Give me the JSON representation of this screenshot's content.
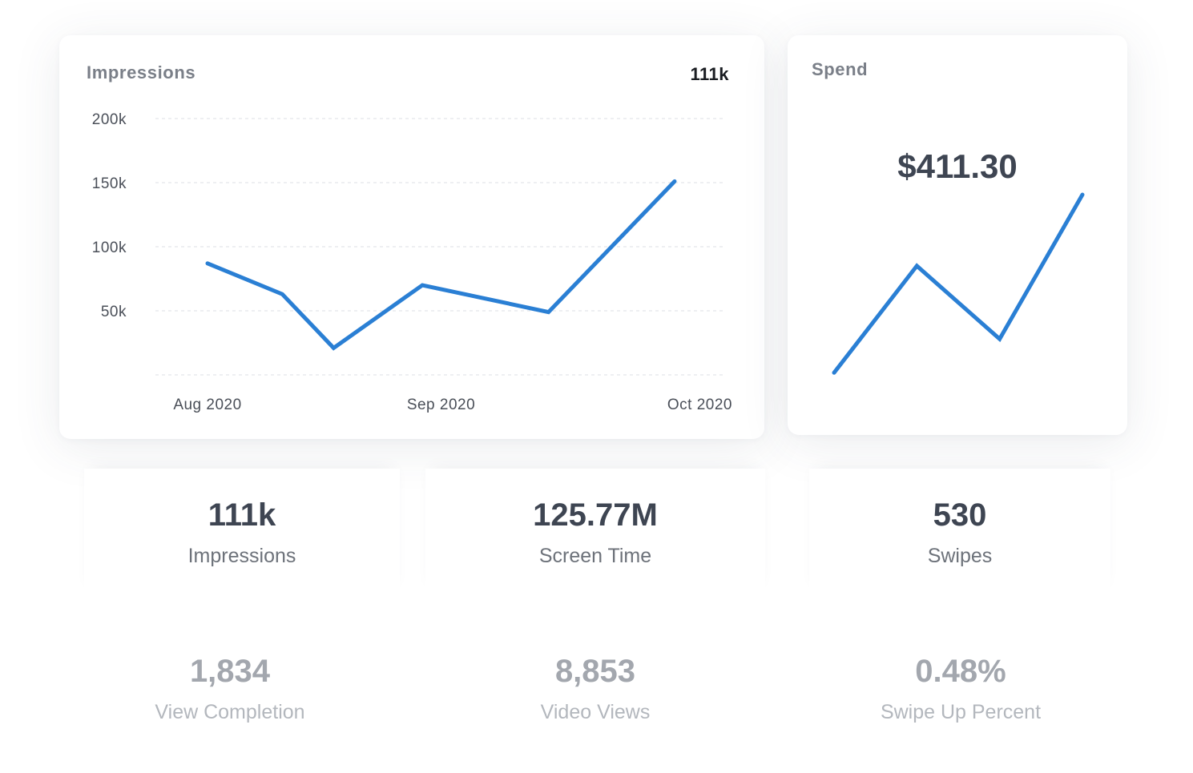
{
  "impressions_card": {
    "title": "Impressions",
    "total": "111k"
  },
  "spend_card": {
    "title": "Spend",
    "amount": "$411.30"
  },
  "chart_data": [
    {
      "type": "line",
      "title": "Impressions",
      "x": [
        0,
        0.16,
        0.27,
        0.46,
        0.73,
        1.0
      ],
      "x_tick_values": [
        0,
        0.5,
        1.0
      ],
      "x_tick_labels": [
        "Aug 2020",
        "Sep 2020",
        "Oct 2020"
      ],
      "y_tick_values": [
        50000,
        100000,
        150000,
        200000
      ],
      "y_tick_labels": [
        "50k",
        "100k",
        "150k",
        "200k"
      ],
      "ylim": [
        0,
        200000
      ],
      "grid": true,
      "series": [
        {
          "name": "Impressions",
          "values": [
            87000,
            63000,
            21000,
            70000,
            49000,
            151000
          ]
        }
      ],
      "color": "#2a7fd4"
    },
    {
      "type": "line",
      "title": "Spend",
      "x": [
        0,
        1,
        2,
        3
      ],
      "ylim": [
        0,
        100
      ],
      "grid": false,
      "series": [
        {
          "name": "Spend",
          "values": [
            5,
            62,
            23,
            100
          ]
        }
      ],
      "color": "#2a7fd4"
    }
  ],
  "stats": [
    {
      "value": "111k",
      "label": "Impressions"
    },
    {
      "value": "125.77M",
      "label": "Screen Time"
    },
    {
      "value": "530",
      "label": "Swipes"
    },
    {
      "value": "1,834",
      "label": "View Completion"
    },
    {
      "value": "8,853",
      "label": "Video Views"
    },
    {
      "value": "0.48%",
      "label": "Swipe Up Percent"
    }
  ]
}
